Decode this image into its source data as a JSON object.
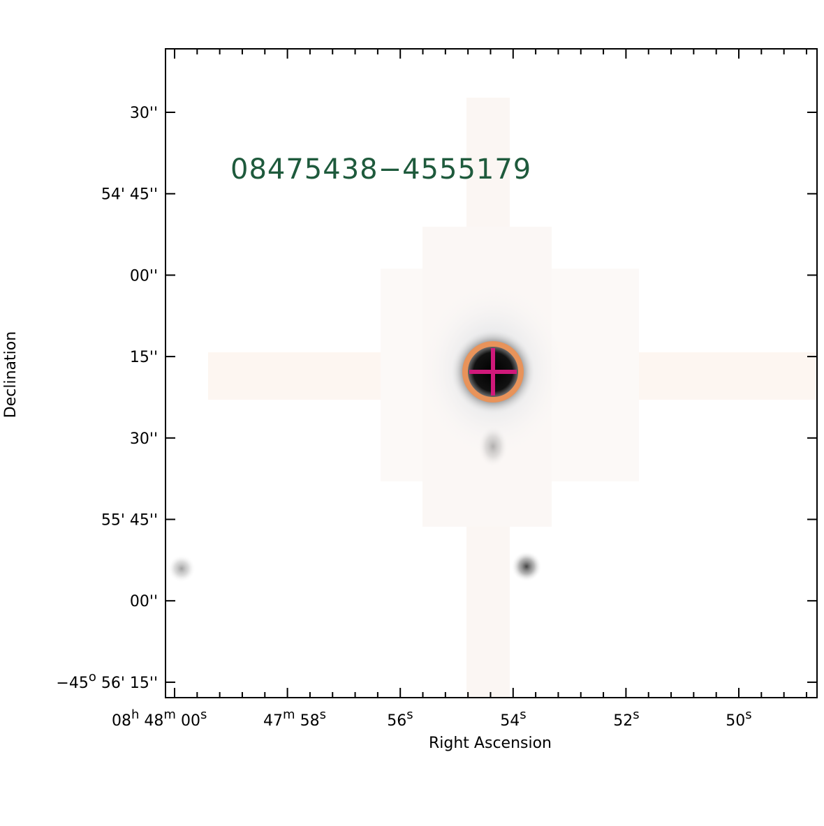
{
  "title": "08475438−4555179",
  "x_axis": {
    "label": "Right Ascension",
    "ticks": [
      [
        {
          "t": "08"
        },
        {
          "sup": "h"
        },
        {
          "t": " 48"
        },
        {
          "sup": "m"
        },
        {
          "t": " 00"
        },
        {
          "sup": "s"
        }
      ],
      [
        {
          "t": "47"
        },
        {
          "sup": "m"
        },
        {
          "t": " 58"
        },
        {
          "sup": "s"
        }
      ],
      [
        {
          "t": "56"
        },
        {
          "sup": "s"
        }
      ],
      [
        {
          "t": "54"
        },
        {
          "sup": "s"
        }
      ],
      [
        {
          "t": "52"
        },
        {
          "sup": "s"
        }
      ],
      [
        {
          "t": "50"
        },
        {
          "sup": "s"
        }
      ]
    ]
  },
  "y_axis": {
    "label": "Declination",
    "ticks": [
      [
        {
          "t": "30''"
        }
      ],
      [
        {
          "t": "54' 45''"
        }
      ],
      [
        {
          "t": "00''"
        }
      ],
      [
        {
          "t": "15''"
        }
      ],
      [
        {
          "t": "30''"
        }
      ],
      [
        {
          "t": "55' 45''"
        }
      ],
      [
        {
          "t": "00''"
        }
      ],
      [
        {
          "t": "−45"
        },
        {
          "sup": "o"
        },
        {
          "t": " 56' 15''"
        }
      ]
    ]
  }
}
